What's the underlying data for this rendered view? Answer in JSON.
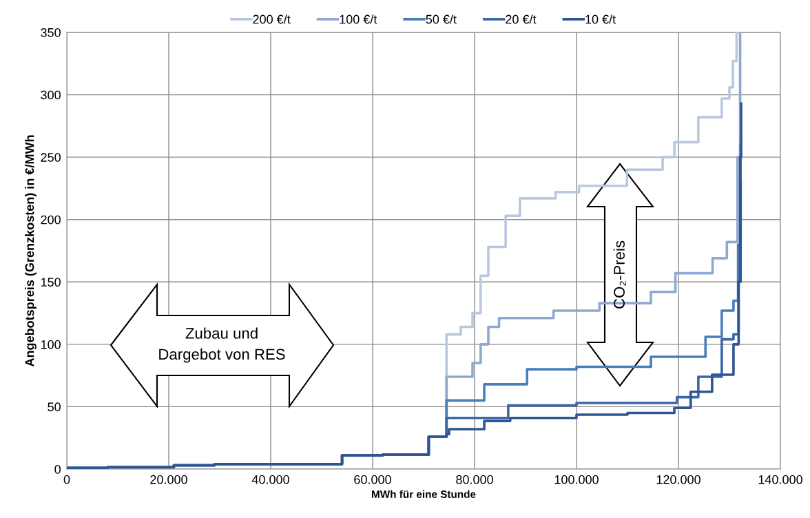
{
  "chart_data": {
    "type": "step",
    "xlabel": "MWh für eine Stunde",
    "ylabel": "Angebotspreis (Grenzkosten) in €/MWh",
    "xlim": [
      0,
      140000
    ],
    "xticks": [
      {
        "value": 0,
        "label": "0"
      },
      {
        "value": 20000,
        "label": "20.000"
      },
      {
        "value": 40000,
        "label": "40.000"
      },
      {
        "value": 60000,
        "label": "60.000"
      },
      {
        "value": 80000,
        "label": "80.000"
      },
      {
        "value": 100000,
        "label": "100.000"
      },
      {
        "value": 120000,
        "label": "120.000"
      },
      {
        "value": 140000,
        "label": "140.000"
      }
    ],
    "ylim": [
      0,
      350
    ],
    "yticks": [
      0,
      50,
      100,
      150,
      200,
      250,
      300,
      350
    ],
    "grid": true,
    "legend": "top",
    "annotations": [
      "Zubau und\nDargebot von RES",
      "CO₂-Preis"
    ],
    "series": [
      {
        "name": "200 €/t",
        "color": "#b9c7e0",
        "x": [
          0,
          8000,
          21000,
          29000,
          54000,
          62000,
          71000,
          74500,
          77300,
          79600,
          81200,
          82700,
          86100,
          88900,
          95900,
          100500,
          109900,
          116900,
          119200,
          123900,
          128500,
          130000,
          130700,
          131400
        ],
        "values": [
          1,
          1.5,
          3,
          4,
          11,
          11.5,
          26,
          108,
          114,
          125,
          155,
          178,
          203,
          217,
          222,
          227,
          240,
          250,
          262,
          282,
          297,
          306,
          327,
          350
        ]
      },
      {
        "name": "100 €/t",
        "color": "#8fa8d2",
        "x": [
          0,
          8000,
          21000,
          29000,
          54000,
          62000,
          71000,
          74500,
          79600,
          81200,
          82700,
          84800,
          95500,
          104500,
          114600,
          119400,
          126700,
          129500,
          131600,
          132100
        ],
        "values": [
          1,
          1.5,
          3,
          4,
          11,
          11.5,
          26,
          74,
          85,
          100,
          114,
          121,
          127,
          133,
          142,
          157,
          169,
          182,
          250,
          350
        ]
      },
      {
        "name": "50 €/t",
        "color": "#4a7ebb",
        "x": [
          0,
          8000,
          21000,
          29000,
          54000,
          62000,
          71000,
          74500,
          81900,
          90300,
          100000,
          114600,
          125300,
          128500,
          130800,
          131700,
          132200
        ],
        "values": [
          1,
          1.5,
          3,
          4,
          11,
          11.5,
          26,
          55,
          68,
          80,
          82,
          90,
          106,
          127,
          135,
          180,
          260
        ]
      },
      {
        "name": "20 €/t",
        "color": "#3a68a6",
        "x": [
          0,
          8000,
          21000,
          29000,
          54000,
          62000,
          71000,
          74500,
          86600,
          100000,
          119700,
          123900,
          128500,
          130800,
          131800,
          132200
        ],
        "values": [
          1,
          1.5,
          3,
          4,
          11,
          11.5,
          26,
          41,
          51,
          53,
          57.6,
          74,
          104,
          108,
          150,
          230
        ]
      },
      {
        "name": "10 €/t",
        "color": "#2f5590",
        "x": [
          0,
          8000,
          21000,
          29000,
          54000,
          62000,
          71000,
          74500,
          75000,
          81900,
          87000,
          100000,
          110000,
          119200,
          122400,
          126600,
          130800,
          131800,
          132100,
          132300
        ],
        "values": [
          1,
          1.5,
          3,
          4,
          11,
          11.5,
          26,
          28,
          32,
          38.6,
          41,
          43.6,
          45,
          49,
          62,
          75.6,
          100,
          150,
          250,
          293
        ]
      }
    ]
  }
}
